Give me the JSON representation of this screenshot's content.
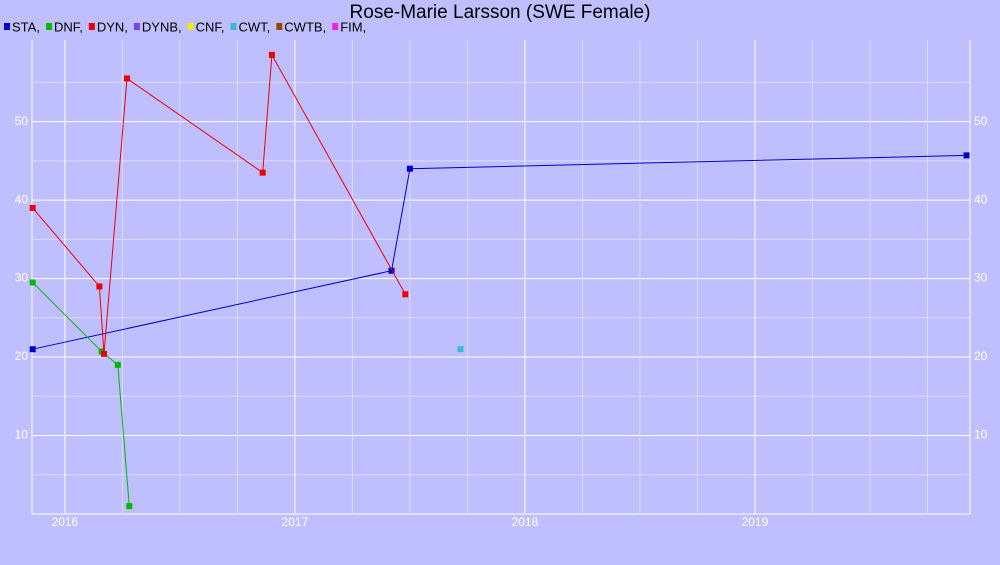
{
  "chart_data": {
    "type": "line",
    "title": "Rose-Marie Larsson (SWE Female)",
    "series": [
      {
        "name": "STA,",
        "color": "#0000cc",
        "x": [
          2015.86,
          2017.42,
          2017.5,
          2019.92
        ],
        "values": [
          21,
          31,
          44,
          45.7
        ]
      },
      {
        "name": "DNF,",
        "color": "#00bb00",
        "x": [
          2015.86,
          2016.16,
          2016.23,
          2016.28
        ],
        "values": [
          29.5,
          20.7,
          19,
          1
        ]
      },
      {
        "name": "DYN,",
        "color": "#ee0000",
        "x": [
          2015.86,
          2016.15,
          2016.17,
          2016.27,
          2016.86,
          2016.9,
          2017.48
        ],
        "values": [
          39,
          29,
          20.4,
          55.5,
          43.5,
          58.5,
          28
        ]
      },
      {
        "name": "DYNB,",
        "color": "#7744ee",
        "x": [],
        "values": []
      },
      {
        "name": "CNF,",
        "color": "#eeee00",
        "x": [],
        "values": []
      },
      {
        "name": "CWT,",
        "color": "#33bbdd",
        "x": [
          2017.72
        ],
        "values": [
          21
        ]
      },
      {
        "name": "CWTB,",
        "color": "#994400",
        "x": [],
        "values": []
      },
      {
        "name": "FIM,",
        "color": "#ee22ee",
        "x": [],
        "values": []
      }
    ],
    "xlim": [
      2015.857,
      2019.935
    ],
    "xticks": [
      2016,
      2017,
      2018,
      2019
    ],
    "ylim": [
      0,
      60.4
    ],
    "yticks": [
      10,
      20,
      30,
      40,
      50
    ],
    "grid": true
  }
}
